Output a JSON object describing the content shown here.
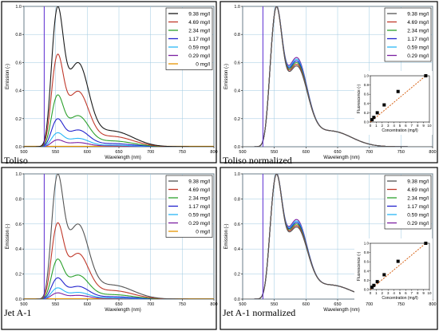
{
  "chart_data": [
    {
      "type": "line",
      "panel_label": "Toliso",
      "xlabel": "Wavelength (nm)",
      "ylabel": "Emission (-)",
      "xlim": [
        500,
        800
      ],
      "ylim": [
        0,
        1.0
      ],
      "xticks": [
        "500",
        "550",
        "600",
        "650",
        "700",
        "750",
        "800"
      ],
      "yticks": [
        "0.0",
        "0.2",
        "0.4",
        "0.6",
        "0.8",
        "1.0"
      ],
      "grid": true,
      "legend_position": "top-right",
      "normalized": false,
      "series": [
        {
          "name": "9.38 mg/l",
          "color": "#1a1a1a",
          "peak": 1.0
        },
        {
          "name": "4.69 mg/l",
          "color": "#c0392b",
          "peak": 0.66
        },
        {
          "name": "2.34 mg/l",
          "color": "#2ca02c",
          "peak": 0.37
        },
        {
          "name": "1.17 mg/l",
          "color": "#2222cc",
          "peak": 0.2
        },
        {
          "name": "0.59 mg/l",
          "color": "#29b6f6",
          "peak": 0.1
        },
        {
          "name": "0.29 mg/l",
          "color": "#7b1fa2",
          "peak": 0.05
        },
        {
          "name": "0 mg/l",
          "color": "#e69500",
          "peak": 0.0
        }
      ]
    },
    {
      "type": "line",
      "panel_label": "Toliso normalized",
      "xlabel": "Wavelength (nm)",
      "ylabel": "Emission (-)",
      "xlim": [
        500,
        800
      ],
      "ylim": [
        0,
        1.0
      ],
      "xticks": [
        "500",
        "550",
        "600",
        "650",
        "700",
        "750",
        "800"
      ],
      "yticks": [
        "0.0",
        "0.2",
        "0.4",
        "0.6",
        "0.8",
        "1.0"
      ],
      "grid": true,
      "legend_position": "top-right",
      "normalized": true,
      "series": [
        {
          "name": "9.38 mg/l",
          "color": "#555555"
        },
        {
          "name": "4.69 mg/l",
          "color": "#c0392b"
        },
        {
          "name": "2.34 mg/l",
          "color": "#2ca02c"
        },
        {
          "name": "1.17 mg/l",
          "color": "#2222cc"
        },
        {
          "name": "0.59 mg/l",
          "color": "#29b6f6"
        },
        {
          "name": "0.29 mg/l",
          "color": "#7b1fa2"
        }
      ],
      "inset": {
        "type": "scatter",
        "xlabel": "Concentration (mg/l)",
        "ylabel": "Fluorescence (-)",
        "xlim": [
          0,
          10
        ],
        "ylim": [
          0,
          1.0
        ],
        "xticks": [
          "0",
          "1",
          "2",
          "3",
          "4",
          "5",
          "6",
          "7",
          "8",
          "9",
          "10"
        ],
        "yticks": [
          "0.0",
          "0.2",
          "0.4",
          "0.6",
          "0.8",
          "1.0"
        ],
        "x": [
          0.29,
          0.59,
          1.17,
          2.34,
          4.69,
          9.38
        ],
        "y": [
          0.05,
          0.1,
          0.2,
          0.37,
          0.66,
          1.0
        ],
        "fit_color": "#d35400"
      }
    },
    {
      "type": "line",
      "panel_label": "Jet A-1",
      "xlabel": "Wavelength (nm)",
      "ylabel": "Emission (-)",
      "xlim": [
        500,
        800
      ],
      "ylim": [
        0,
        1.0
      ],
      "xticks": [
        "500",
        "550",
        "600",
        "650",
        "700",
        "750",
        "800"
      ],
      "yticks": [
        "0.0",
        "0.2",
        "0.4",
        "0.6",
        "0.8",
        "1.0"
      ],
      "grid": true,
      "legend_position": "top-right",
      "normalized": false,
      "series": [
        {
          "name": "9.38 mg/l",
          "color": "#555555",
          "peak": 1.0
        },
        {
          "name": "4.69 mg/l",
          "color": "#c0392b",
          "peak": 0.61
        },
        {
          "name": "2.34 mg/l",
          "color": "#2ca02c",
          "peak": 0.32
        },
        {
          "name": "1.17 mg/l",
          "color": "#2222cc",
          "peak": 0.17
        },
        {
          "name": "0.59 mg/l",
          "color": "#29b6f6",
          "peak": 0.09
        },
        {
          "name": "0.29 mg/l",
          "color": "#7b1fa2",
          "peak": 0.05
        },
        {
          "name": "0 mg/l",
          "color": "#e69500",
          "peak": 0.0
        }
      ]
    },
    {
      "type": "line",
      "panel_label": "Jet A-1 normalized",
      "xlabel": "Wavelength (nm)",
      "ylabel": "Emission (-)",
      "xlim": [
        500,
        800
      ],
      "ylim": [
        0,
        1.0
      ],
      "xticks": [
        "500",
        "550",
        "600",
        "650",
        "700",
        "750",
        "800"
      ],
      "yticks": [
        "0.0",
        "0.2",
        "0.4",
        "0.6",
        "0.8",
        "1.0"
      ],
      "grid": true,
      "legend_position": "top-right",
      "normalized": true,
      "series": [
        {
          "name": "9.38 mg/l",
          "color": "#555555"
        },
        {
          "name": "4.69 mg/l",
          "color": "#c0392b"
        },
        {
          "name": "2.34 mg/l",
          "color": "#2ca02c"
        },
        {
          "name": "1.17 mg/l",
          "color": "#2222cc"
        },
        {
          "name": "0.59 mg/l",
          "color": "#29b6f6"
        },
        {
          "name": "0.29 mg/l",
          "color": "#7b1fa2"
        }
      ],
      "inset": {
        "type": "scatter",
        "xlabel": "Concentration (mg/l)",
        "ylabel": "Fluorescence (-)",
        "xlim": [
          0,
          10
        ],
        "ylim": [
          0,
          1.0
        ],
        "xticks": [
          "0",
          "1",
          "2",
          "3",
          "4",
          "5",
          "6",
          "7",
          "8",
          "9",
          "10"
        ],
        "yticks": [
          "0.0",
          "0.2",
          "0.4",
          "0.6",
          "0.8",
          "1.0"
        ],
        "x": [
          0.29,
          0.59,
          1.17,
          2.34,
          4.69,
          9.38
        ],
        "y": [
          0.05,
          0.09,
          0.17,
          0.32,
          0.61,
          1.0
        ],
        "fit_color": "#d35400"
      }
    }
  ]
}
